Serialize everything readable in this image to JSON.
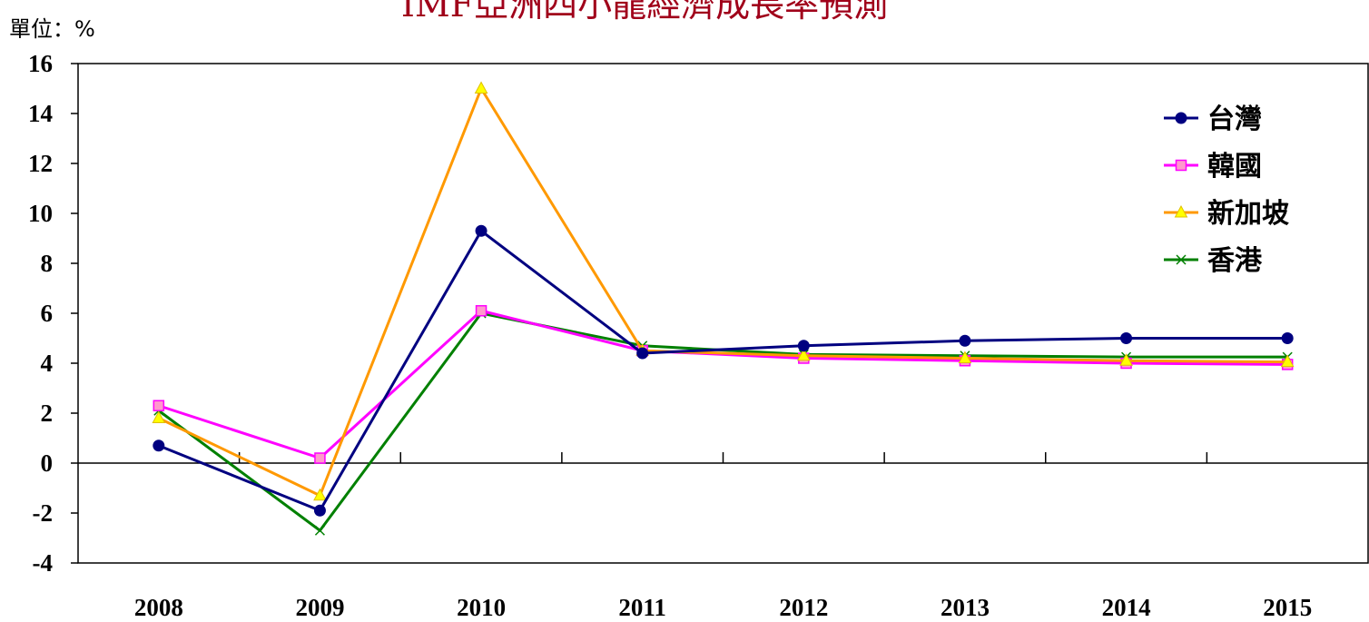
{
  "chart_data": {
    "type": "line",
    "title": "IMF亞洲四小龍經濟成長率預測",
    "unit_label": "單位：%",
    "categories": [
      "2008",
      "2009",
      "2010",
      "2011",
      "2012",
      "2013",
      "2014",
      "2015"
    ],
    "ylim": [
      -4,
      16
    ],
    "yticks": [
      -4,
      -2,
      0,
      2,
      4,
      6,
      8,
      10,
      12,
      14,
      16
    ],
    "grid": false,
    "legend_position": "top-right",
    "series": [
      {
        "name": "台灣",
        "color": "#000080",
        "marker": "circle",
        "values": [
          0.7,
          -1.9,
          9.3,
          4.4,
          4.7,
          4.9,
          5.0,
          5.0
        ]
      },
      {
        "name": "韓國",
        "color": "#ff00ff",
        "marker": "square",
        "values": [
          2.3,
          0.2,
          6.1,
          4.5,
          4.2,
          4.1,
          4.0,
          3.95
        ]
      },
      {
        "name": "新加坡",
        "color": "#ff9900",
        "marker": "triangle",
        "values": [
          1.8,
          -1.3,
          15.0,
          4.5,
          4.3,
          4.2,
          4.1,
          4.05
        ]
      },
      {
        "name": "香港",
        "color": "#008000",
        "marker": "x",
        "values": [
          2.1,
          -2.7,
          6.0,
          4.7,
          4.35,
          4.3,
          4.25,
          4.25
        ]
      }
    ]
  }
}
